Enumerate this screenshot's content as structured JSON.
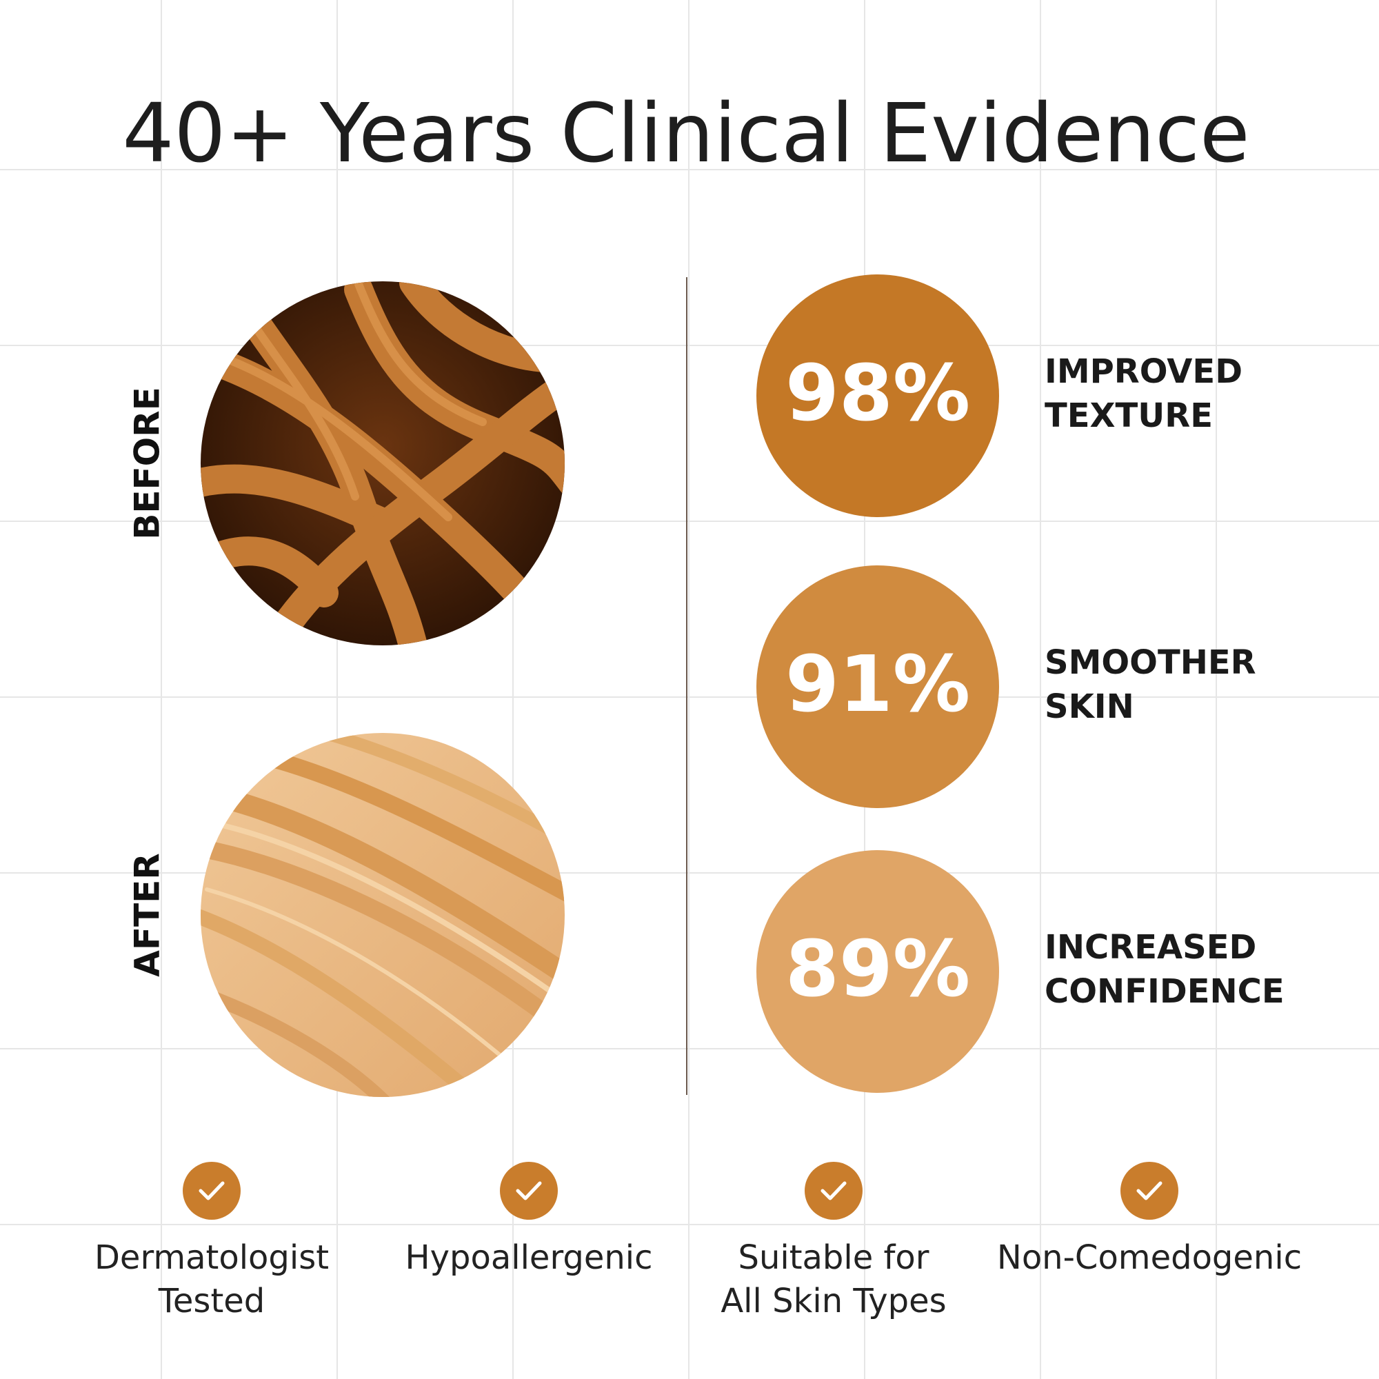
{
  "title": "40+ Years Clinical Evidence",
  "comparison": [
    {
      "label": "BEFORE"
    },
    {
      "label": "AFTER"
    }
  ],
  "stats": [
    {
      "value": "98%",
      "label_lines": [
        "IMPROVED",
        "TEXTURE"
      ],
      "color": "#c47826"
    },
    {
      "value": "91%",
      "label_lines": [
        "SMOOTHER",
        "SKIN"
      ],
      "color": "#d08b3f"
    },
    {
      "value": "89%",
      "label_lines": [
        "INCREASED",
        "CONFIDENCE"
      ],
      "color": "#e0a566"
    }
  ],
  "badges": [
    {
      "label_lines": [
        "Dermatologist",
        "Tested"
      ]
    },
    {
      "label_lines": [
        "Hypoallergenic"
      ]
    },
    {
      "label_lines": [
        "Suitable for",
        "All Skin Types"
      ]
    },
    {
      "label_lines": [
        "Non-Comedogenic"
      ]
    }
  ]
}
